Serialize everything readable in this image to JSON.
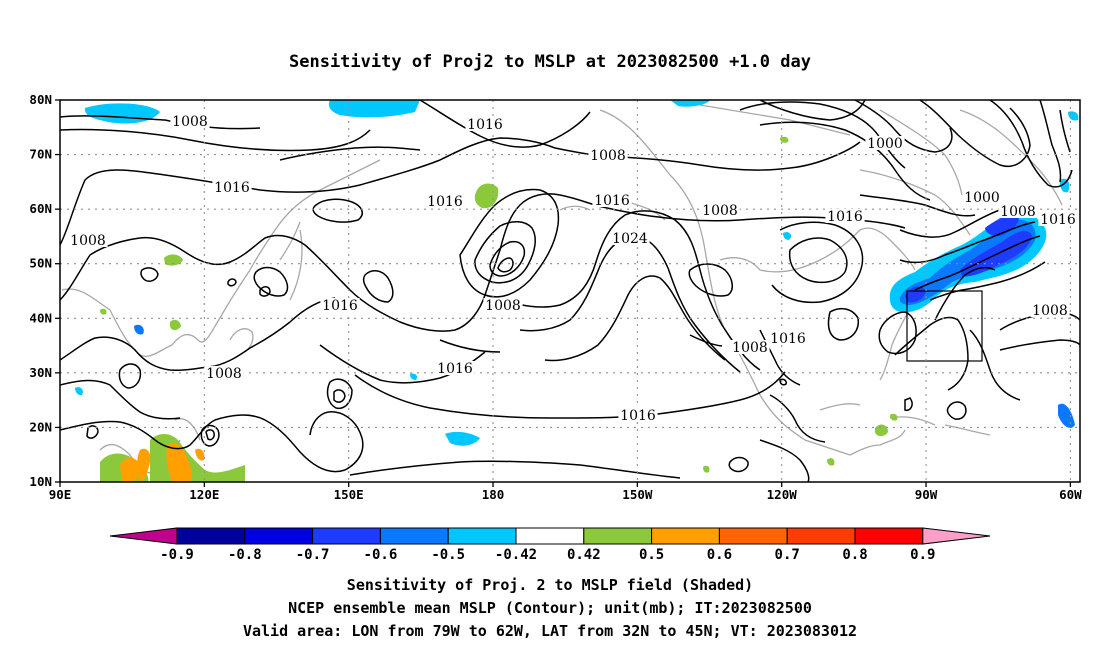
{
  "title": "Sensitivity of Proj2 to MSLP at 2023082500 +1.0 day",
  "map": {
    "lat_ticks": [
      "80N",
      "70N",
      "60N",
      "50N",
      "40N",
      "30N",
      "20N",
      "10N"
    ],
    "lon_ticks": [
      "90E",
      "120E",
      "150E",
      "180",
      "150W",
      "120W",
      "90W",
      "60W"
    ],
    "lat_range": [
      10,
      80
    ],
    "lon_range_east": [
      90,
      302
    ],
    "grid_lines": "dotted",
    "valid_area": {
      "lon": [
        -79,
        -62
      ],
      "lat": [
        32,
        45
      ]
    },
    "contour_labels": [
      "1008",
      "1016",
      "1008",
      "1000",
      "1016",
      "1016",
      "1008",
      "1016",
      "1024",
      "1008",
      "1000",
      "1008",
      "1016",
      "1016",
      "1008",
      "1016",
      "1008",
      "1008",
      "1016",
      "1016",
      "1016",
      "1008"
    ]
  },
  "colorbar": {
    "labels": [
      "-0.9",
      "-0.8",
      "-0.7",
      "-0.6",
      "-0.5",
      "-0.42",
      "0.42",
      "0.5",
      "0.6",
      "0.7",
      "0.8",
      "0.9"
    ],
    "colors": [
      "#c0008c",
      "#00009c",
      "#0000e0",
      "#1e3cff",
      "#0a78ff",
      "#00c8ff",
      "#ffffff",
      "#8cc83c",
      "#ffa000",
      "#ff6400",
      "#ff3c00",
      "#ff0000",
      "#ff9ec8"
    ]
  },
  "captions": {
    "line1": "Sensitivity of Proj. 2 to MSLP field (Shaded)",
    "line2": "NCEP ensemble mean MSLP (Contour); unit(mb); IT:2023082500",
    "line3": "Valid area: LON from 79W to 62W, LAT from 32N to 45N; VT: 2023083012"
  }
}
